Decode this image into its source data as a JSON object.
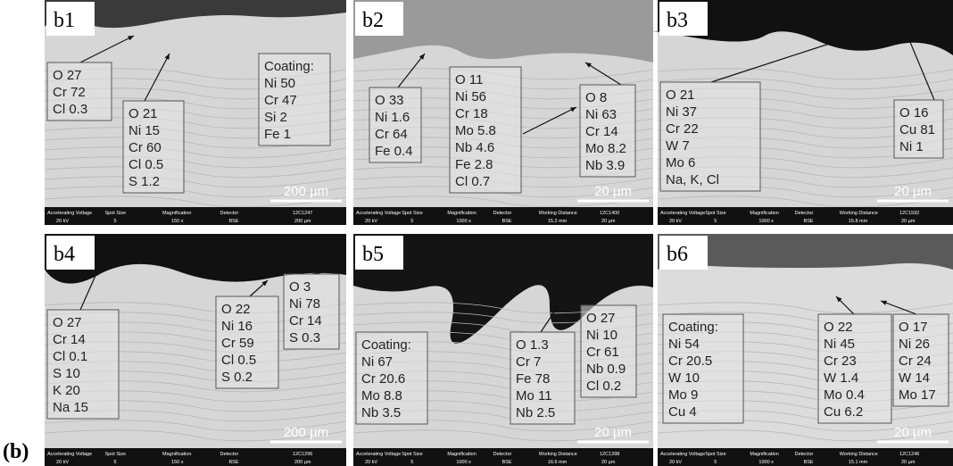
{
  "figure_label": "(b)",
  "panels": [
    {
      "label": "b1",
      "boxes": [
        {
          "lines": [
            "O 27",
            "Cr 72",
            "Cl 0.3"
          ]
        },
        {
          "lines": [
            "O 21",
            "Ni 15",
            "Cr 60",
            "Cl 0.5",
            "S 1.2"
          ]
        },
        {
          "lines": [
            "Coating:",
            "Ni 50",
            "Cr 47",
            "Si 2",
            "Fe 1"
          ]
        }
      ],
      "scale": "200 µm",
      "info": {
        "headers": [
          "Accelerating Voltage",
          "Spot Size",
          "Magnification",
          "Detector"
        ],
        "values": [
          "20 kV",
          "5",
          "150 x",
          "BSE"
        ],
        "id": "12C1247",
        "bar": "200 µm"
      }
    },
    {
      "label": "b2",
      "boxes": [
        {
          "lines": [
            "O 33",
            "Ni 1.6",
            "Cr 64",
            "Fe 0.4"
          ]
        },
        {
          "lines": [
            "O 11",
            "Ni 56",
            "Cr 18",
            "Mo 5.8",
            "Nb 4.6",
            "Fe 2.8",
            "Cl 0.7"
          ]
        },
        {
          "lines": [
            "O 8",
            "Ni 63",
            "Cr 14",
            "Mo 8.2",
            "Nb 3.9"
          ]
        }
      ],
      "scale": "20 µm",
      "info": {
        "headers": [
          "Accelerating Voltage",
          "Spot Size",
          "Magnification",
          "Detector",
          "Working Distance"
        ],
        "values": [
          "20 kV",
          "5",
          "1000 x",
          "BSE",
          "15.2 mm"
        ],
        "id": "12C1400",
        "bar": "20 µm"
      }
    },
    {
      "label": "b3",
      "boxes": [
        {
          "lines": [
            "O 21",
            "Ni 37",
            "Cr 22",
            "W 7",
            "Mo 6",
            "Na, K, Cl"
          ]
        },
        {
          "lines": [
            "O 16",
            "Cu 81",
            "Ni 1"
          ]
        }
      ],
      "scale": "20 µm",
      "info": {
        "headers": [
          "Accelerating Voltage",
          "Spot Size",
          "Magnification",
          "Detector",
          "Working Distance"
        ],
        "values": [
          "20 kV",
          "5",
          "1000 x",
          "BSE",
          "15.8 mm"
        ],
        "id": "12C1592",
        "bar": "20 µm"
      }
    },
    {
      "label": "b4",
      "boxes": [
        {
          "lines": [
            "O 27",
            "Cr 14",
            "Cl 0.1",
            "S 10",
            "K 20",
            "Na 15"
          ]
        },
        {
          "lines": [
            "O 22",
            "Ni 16",
            "Cr 59",
            "Cl 0.5",
            "S 0.2"
          ]
        },
        {
          "lines": [
            "O 3",
            "Ni 78",
            "Cr 14",
            "S 0.3"
          ]
        }
      ],
      "scale": "200 µm",
      "info": {
        "headers": [
          "Accelerating Voltage",
          "Spot Size",
          "Magnification",
          "Detector"
        ],
        "values": [
          "20 kV",
          "5",
          "150 x",
          "BSE"
        ],
        "id": "12C1296",
        "bar": "200 µm"
      }
    },
    {
      "label": "b5",
      "boxes": [
        {
          "lines": [
            "Coating:",
            "Ni 67",
            "Cr 20.6",
            "Mo 8.8",
            "Nb 3.5"
          ]
        },
        {
          "lines": [
            "O 1.3",
            "Cr 7",
            "Fe 78",
            "Mo 11",
            "Nb 2.5"
          ]
        },
        {
          "lines": [
            "O 27",
            "Ni 10",
            "Cr 61",
            "Nb 0.9",
            "Cl 0.2"
          ]
        }
      ],
      "scale": "20 µm",
      "info": {
        "headers": [
          "Accelerating Voltage",
          "Spot Size",
          "Magnification",
          "Detector",
          "Working Distance"
        ],
        "values": [
          "20 kV",
          "5",
          "1000 x",
          "BSE",
          "16.6 mm"
        ],
        "id": "12C1398",
        "bar": "20 µm"
      }
    },
    {
      "label": "b6",
      "boxes": [
        {
          "lines": [
            "Coating:",
            "Ni 54",
            "Cr 20.5",
            "W 10",
            "Mo 9",
            "Cu 4"
          ]
        },
        {
          "lines": [
            "O 22",
            "Ni 45",
            "Cr 23",
            "W 1.4",
            "Mo 0.4",
            "Cu 6.2"
          ]
        },
        {
          "lines": [
            "O 17",
            "Ni 26",
            "Cr 24",
            "W 14",
            "Mo 17"
          ]
        }
      ],
      "scale": "20 µm",
      "info": {
        "headers": [
          "Accelerating Voltage",
          "Spot Size",
          "Magnification",
          "Detector",
          "Working Distance"
        ],
        "values": [
          "20 kV",
          "5",
          "1000 x",
          "BSE",
          "15.1 mm"
        ],
        "id": "12C1246",
        "bar": "20 µm"
      }
    }
  ]
}
